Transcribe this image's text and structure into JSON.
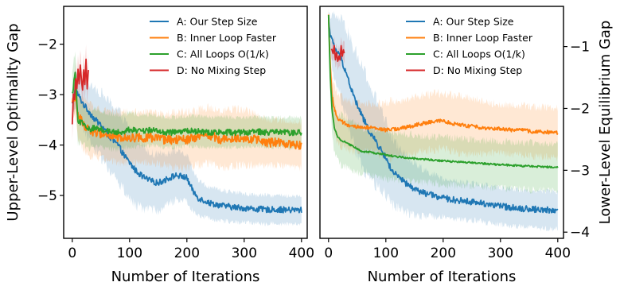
{
  "colors": {
    "A": "#1f77b4",
    "B": "#ff7f0e",
    "C": "#2ca02c",
    "D": "#d62728"
  },
  "chart_data": [
    {
      "type": "line",
      "xlabel": "Number of Iterations",
      "ylabel": "Upper-Level Optimality Gap",
      "xlim": [
        -15,
        410
      ],
      "ylim": [
        -5.85,
        -1.25
      ],
      "xticks": [
        0,
        100,
        200,
        300,
        400
      ],
      "xtick_labels": [
        "0",
        "100",
        "200",
        "300",
        "400"
      ],
      "yticks": [
        -5,
        -4,
        -3,
        -2
      ],
      "ytick_labels": [
        "−5",
        "−4",
        "−3",
        "−2"
      ],
      "y_axis_side": "left",
      "legend": "top-right",
      "grid": false,
      "series": [
        {
          "name": "A: Our Step Size",
          "key": "A",
          "x": [
            0,
            5,
            10,
            15,
            20,
            30,
            40,
            50,
            60,
            70,
            80,
            90,
            100,
            110,
            120,
            130,
            140,
            150,
            160,
            170,
            180,
            190,
            200,
            210,
            220,
            240,
            260,
            280,
            300,
            320,
            340,
            360,
            380,
            400
          ],
          "y": [
            -3.2,
            -2.9,
            -3.0,
            -3.1,
            -3.2,
            -3.35,
            -3.5,
            -3.6,
            -3.75,
            -3.9,
            -4.0,
            -4.2,
            -4.35,
            -4.5,
            -4.6,
            -4.68,
            -4.72,
            -4.75,
            -4.7,
            -4.65,
            -4.6,
            -4.62,
            -4.65,
            -4.9,
            -5.05,
            -5.15,
            -5.2,
            -5.23,
            -5.25,
            -5.27,
            -5.28,
            -5.28,
            -5.29,
            -5.29
          ],
          "band": [
            0.3,
            0.35,
            0.4,
            0.45,
            0.5,
            0.55,
            0.6,
            0.65,
            0.65,
            0.7,
            0.7,
            0.7,
            0.7,
            0.7,
            0.65,
            0.6,
            0.55,
            0.55,
            0.55,
            0.5,
            0.5,
            0.45,
            0.45,
            0.4,
            0.35,
            0.3,
            0.3,
            0.3,
            0.28,
            0.28,
            0.28,
            0.28,
            0.28,
            0.28
          ],
          "noise": 0.06
        },
        {
          "name": "B: Inner Loop Faster",
          "key": "B",
          "x": [
            0,
            5,
            10,
            20,
            30,
            40,
            60,
            80,
            100,
            120,
            140,
            160,
            180,
            200,
            220,
            240,
            260,
            280,
            300,
            320,
            340,
            360,
            380,
            400
          ],
          "y": [
            -3.2,
            -3.0,
            -3.4,
            -3.6,
            -3.7,
            -3.75,
            -3.8,
            -3.85,
            -3.85,
            -3.85,
            -3.85,
            -3.9,
            -3.9,
            -3.9,
            -3.85,
            -3.8,
            -3.9,
            -3.85,
            -3.85,
            -3.9,
            -3.95,
            -3.95,
            -3.98,
            -4.0
          ],
          "band": [
            0.3,
            0.4,
            0.45,
            0.5,
            0.5,
            0.5,
            0.5,
            0.5,
            0.5,
            0.5,
            0.5,
            0.5,
            0.55,
            0.55,
            0.55,
            0.55,
            0.55,
            0.55,
            0.55,
            0.5,
            0.45,
            0.45,
            0.45,
            0.45
          ],
          "noise": 0.09
        },
        {
          "name": "C: All Loops O(1/k)",
          "key": "C",
          "x": [
            0,
            5,
            10,
            20,
            30,
            40,
            60,
            80,
            100,
            120,
            140,
            160,
            180,
            200,
            220,
            240,
            260,
            280,
            300,
            320,
            340,
            360,
            380,
            400
          ],
          "y": [
            -3.0,
            -2.6,
            -3.5,
            -3.6,
            -3.7,
            -3.65,
            -3.72,
            -3.75,
            -3.7,
            -3.72,
            -3.7,
            -3.75,
            -3.75,
            -3.72,
            -3.73,
            -3.75,
            -3.74,
            -3.75,
            -3.75,
            -3.73,
            -3.75,
            -3.75,
            -3.76,
            -3.75
          ],
          "band": [
            0.4,
            0.5,
            0.45,
            0.4,
            0.38,
            0.35,
            0.35,
            0.35,
            0.33,
            0.32,
            0.3,
            0.3,
            0.3,
            0.3,
            0.3,
            0.3,
            0.3,
            0.3,
            0.3,
            0.3,
            0.3,
            0.3,
            0.3,
            0.3
          ],
          "noise": 0.06
        },
        {
          "name": "D: No Mixing Step",
          "key": "D",
          "x": [
            0,
            2,
            4,
            6,
            8,
            10,
            12,
            14,
            16,
            18,
            20,
            22,
            24,
            26,
            28
          ],
          "y": [
            -3.6,
            -3.0,
            -3.1,
            -2.7,
            -2.9,
            -2.5,
            -2.8,
            -2.4,
            -2.7,
            -2.9,
            -2.5,
            -2.8,
            -2.3,
            -2.9,
            -2.5
          ],
          "band": [
            0.3,
            0.3,
            0.3,
            0.3,
            0.3,
            0.3,
            0.3,
            0.3,
            0.3,
            0.3,
            0.3,
            0.3,
            0.3,
            0.3,
            0.3
          ],
          "noise": 0.02
        }
      ]
    },
    {
      "type": "line",
      "xlabel": "Number of Iterations",
      "ylabel": "Lower-Level Equilibrium Gap",
      "xlim": [
        -15,
        410
      ],
      "ylim": [
        -4.1,
        -0.35
      ],
      "xticks": [
        0,
        100,
        200,
        300,
        400
      ],
      "xtick_labels": [
        "0",
        "100",
        "200",
        "300",
        "400"
      ],
      "yticks": [
        -4,
        -3,
        -2,
        -1
      ],
      "ytick_labels": [
        "−4",
        "−3",
        "−2",
        "−1"
      ],
      "y_axis_side": "right",
      "legend": "top-right",
      "grid": false,
      "series": [
        {
          "name": "A: Our Step Size",
          "key": "A",
          "x": [
            0,
            3,
            6,
            10,
            15,
            20,
            30,
            40,
            50,
            60,
            70,
            80,
            90,
            100,
            110,
            120,
            140,
            160,
            180,
            200,
            220,
            240,
            260,
            280,
            300,
            320,
            340,
            360,
            380,
            400
          ],
          "y": [
            -0.55,
            -0.8,
            -0.9,
            -1.0,
            -1.1,
            -1.15,
            -1.4,
            -1.7,
            -1.95,
            -2.15,
            -2.35,
            -2.5,
            -2.65,
            -2.8,
            -3.0,
            -3.1,
            -3.25,
            -3.35,
            -3.4,
            -3.45,
            -3.48,
            -3.5,
            -3.52,
            -3.55,
            -3.58,
            -3.6,
            -3.62,
            -3.63,
            -3.64,
            -3.65
          ],
          "band": [
            0.1,
            0.3,
            0.4,
            0.5,
            0.55,
            0.6,
            0.7,
            0.75,
            0.8,
            0.8,
            0.75,
            0.7,
            0.65,
            0.6,
            0.55,
            0.5,
            0.45,
            0.4,
            0.35,
            0.3,
            0.3,
            0.3,
            0.3,
            0.3,
            0.3,
            0.3,
            0.3,
            0.3,
            0.3,
            0.3
          ],
          "noise": 0.05
        },
        {
          "name": "B: Inner Loop Faster",
          "key": "B",
          "x": [
            0,
            3,
            6,
            10,
            15,
            20,
            30,
            40,
            60,
            80,
            100,
            120,
            140,
            160,
            180,
            200,
            220,
            240,
            260,
            280,
            300,
            320,
            340,
            360,
            380,
            400
          ],
          "y": [
            -0.5,
            -1.3,
            -1.8,
            -2.0,
            -2.15,
            -2.2,
            -2.25,
            -2.3,
            -2.3,
            -2.32,
            -2.35,
            -2.33,
            -2.3,
            -2.25,
            -2.22,
            -2.2,
            -2.25,
            -2.28,
            -2.3,
            -2.32,
            -2.33,
            -2.35,
            -2.35,
            -2.38,
            -2.38,
            -2.4
          ],
          "band": [
            0.1,
            0.3,
            0.35,
            0.4,
            0.4,
            0.4,
            0.4,
            0.4,
            0.4,
            0.4,
            0.45,
            0.45,
            0.45,
            0.45,
            0.45,
            0.45,
            0.45,
            0.45,
            0.45,
            0.4,
            0.4,
            0.4,
            0.4,
            0.4,
            0.4,
            0.4
          ],
          "noise": 0.03
        },
        {
          "name": "C: All Loops O(1/k)",
          "key": "C",
          "x": [
            0,
            3,
            6,
            10,
            15,
            20,
            30,
            40,
            50,
            60,
            70,
            80,
            100,
            120,
            140,
            160,
            180,
            200,
            240,
            280,
            320,
            360,
            400
          ],
          "y": [
            -0.5,
            -1.5,
            -2.0,
            -2.3,
            -2.45,
            -2.5,
            -2.55,
            -2.6,
            -2.65,
            -2.7,
            -2.7,
            -2.72,
            -2.75,
            -2.78,
            -2.8,
            -2.82,
            -2.83,
            -2.85,
            -2.87,
            -2.9,
            -2.92,
            -2.94,
            -2.95
          ],
          "band": [
            0.1,
            0.3,
            0.35,
            0.4,
            0.4,
            0.4,
            0.4,
            0.4,
            0.4,
            0.38,
            0.38,
            0.38,
            0.38,
            0.38,
            0.38,
            0.38,
            0.38,
            0.38,
            0.38,
            0.38,
            0.38,
            0.38,
            0.38
          ],
          "noise": 0.015
        },
        {
          "name": "D: No Mixing Step",
          "key": "D",
          "x": [
            5,
            8,
            10,
            12,
            14,
            16,
            18,
            20,
            22,
            24,
            26,
            28
          ],
          "y": [
            -1.05,
            -1.1,
            -1.0,
            -1.2,
            -1.1,
            -1.25,
            -1.15,
            -1.2,
            -1.0,
            -1.15,
            -1.05,
            -1.1
          ],
          "band": [
            0.15,
            0.15,
            0.15,
            0.15,
            0.15,
            0.15,
            0.15,
            0.15,
            0.15,
            0.15,
            0.15,
            0.15
          ],
          "noise": 0.02
        }
      ]
    }
  ]
}
